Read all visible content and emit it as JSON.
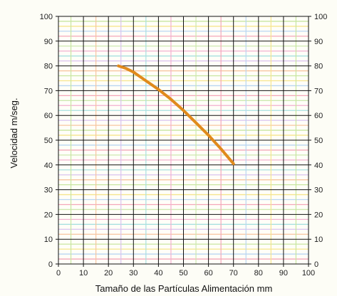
{
  "chart_data": {
    "type": "line",
    "title": "",
    "xlabel": "Tamaño de las Partículas Alimentación mm",
    "ylabel": "Velocidad m/seg.",
    "xlim": [
      0,
      100
    ],
    "ylim": [
      0,
      100
    ],
    "x_ticks": [
      "0",
      "10",
      "20",
      "30",
      "40",
      "50",
      "60",
      "70",
      "80",
      "90",
      "100"
    ],
    "y_ticks": [
      "0",
      "10",
      "20",
      "30",
      "40",
      "50",
      "60",
      "70",
      "80",
      "90",
      "100"
    ],
    "y_ticks_right": [
      "0",
      "10",
      "20",
      "30",
      "40",
      "50",
      "60",
      "70",
      "80",
      "90",
      "100"
    ],
    "grid": true,
    "series": [
      {
        "color": "#e08a1c",
        "x": [
          24,
          27,
          30,
          35,
          40,
          45,
          50,
          55,
          60,
          65,
          70
        ],
        "y": [
          80,
          79,
          77.5,
          74,
          70.5,
          66.5,
          62,
          57,
          52,
          46.5,
          40.5
        ]
      }
    ],
    "colors": {
      "major_grid": "#111111",
      "minor_grid_palette": [
        "#f4a7b9",
        "#b9d6f2",
        "#f6e58d",
        "#c8e6a0",
        "#f7c59f",
        "#d9c2ef",
        "#a8e0e0",
        "#f3b0d0",
        "#cde8b0"
      ],
      "background": "#fdfdf6"
    }
  }
}
